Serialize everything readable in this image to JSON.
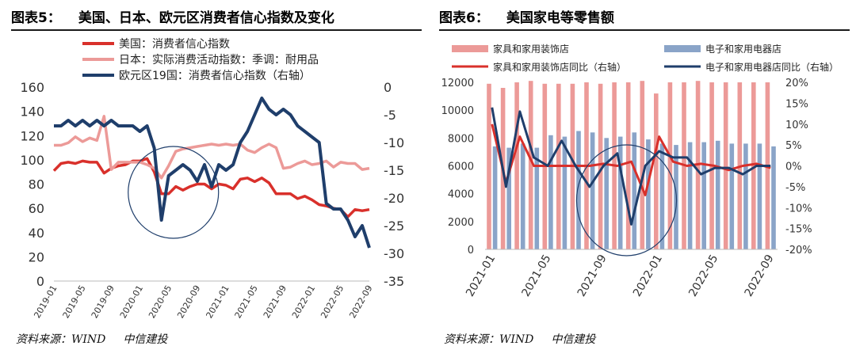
{
  "chart_data": [
    {
      "type": "line",
      "figure_label": "图表5：",
      "title": "美国、日本、欧元区消费者信心指数及变化",
      "source_label": "资料来源：WIND",
      "source_org": "中信建投",
      "x": [
        "2019-01",
        "2019-02",
        "2019-03",
        "2019-04",
        "2019-05",
        "2019-06",
        "2019-07",
        "2019-08",
        "2019-09",
        "2019-10",
        "2019-11",
        "2019-12",
        "2020-01",
        "2020-02",
        "2020-03",
        "2020-04",
        "2020-05",
        "2020-06",
        "2020-07",
        "2020-08",
        "2020-09",
        "2020-10",
        "2020-11",
        "2020-12",
        "2021-01",
        "2021-02",
        "2021-03",
        "2021-04",
        "2021-05",
        "2021-06",
        "2021-07",
        "2021-08",
        "2021-09",
        "2021-10",
        "2021-11",
        "2021-12",
        "2022-01",
        "2022-02",
        "2022-03",
        "2022-04",
        "2022-05",
        "2022-06",
        "2022-07",
        "2022-08",
        "2022-09"
      ],
      "x_tick_labels": [
        "2019-01",
        "2019-05",
        "2019-09",
        "2020-01",
        "2020-05",
        "2020-09",
        "2021-01",
        "2021-05",
        "2021-09",
        "2022-01",
        "2022-05",
        "2022-09"
      ],
      "y_left": {
        "min": 0,
        "max": 160,
        "ticks": [
          "0",
          "20",
          "40",
          "60",
          "80",
          "100",
          "120",
          "140",
          "160"
        ]
      },
      "y_right": {
        "min": -35,
        "max": 0,
        "ticks": [
          "0",
          "-5",
          "-10",
          "-15",
          "-20",
          "-25",
          "-30",
          "-35"
        ]
      },
      "series": [
        {
          "name": "美国：消费者信心指数",
          "axis": "left",
          "color": "#d9302b",
          "values": [
            91,
            97,
            98,
            97,
            99,
            98,
            98,
            89,
            93,
            95,
            96,
            99,
            99,
            101,
            90,
            72,
            72,
            78,
            75,
            78,
            80,
            80,
            76,
            80,
            79,
            76,
            84,
            85,
            82,
            85,
            81,
            72,
            72,
            72,
            68,
            70,
            67,
            63,
            62,
            60,
            59,
            53,
            59,
            58,
            59
          ]
        },
        {
          "name": "日本：实际消费活动指数：季调：耐用品",
          "axis": "left",
          "color": "#ec9a98",
          "values": [
            112,
            112,
            114,
            119,
            115,
            118,
            116,
            136,
            92,
            98,
            98,
            98,
            98,
            96,
            93,
            85,
            95,
            107,
            109,
            110,
            111,
            112,
            113,
            112,
            113,
            112,
            113,
            108,
            106,
            110,
            113,
            110,
            93,
            94,
            97,
            99,
            96,
            97,
            99,
            94,
            98,
            97,
            97,
            92,
            93
          ]
        },
        {
          "name": "欧元区19国：消费者信心指数（右轴）",
          "axis": "right",
          "color": "#1f3e6b",
          "values": [
            -7,
            -7,
            -6,
            -7,
            -6,
            -7,
            -6,
            -7,
            -6,
            -7,
            -7,
            -7,
            -8,
            -7,
            -11,
            -24,
            -16,
            -15,
            -14,
            -15,
            -17,
            -14,
            -18,
            -14,
            -15,
            -14,
            -10,
            -8,
            -5,
            -2,
            -4,
            -5,
            -4,
            -5,
            -7,
            -8,
            -9,
            -10,
            -21,
            -22,
            -22,
            -24,
            -27,
            -25,
            -29
          ]
        }
      ],
      "annotation": "circle around 2020-05"
    },
    {
      "type": "bar+line",
      "figure_label": "图表6：",
      "title": "美国家电等零售额",
      "source_label": "资料来源：WIND",
      "source_org": "中信建投",
      "x": [
        "2021-01",
        "2021-02",
        "2021-03",
        "2021-04",
        "2021-05",
        "2021-06",
        "2021-07",
        "2021-08",
        "2021-09",
        "2021-10",
        "2021-11",
        "2021-12",
        "2022-01",
        "2022-02",
        "2022-03",
        "2022-04",
        "2022-05",
        "2022-06",
        "2022-07",
        "2022-08",
        "2022-09"
      ],
      "x_tick_labels": [
        "2021-01",
        "2021-05",
        "2021-09",
        "2022-01",
        "2022-05",
        "2022-09"
      ],
      "y_left": {
        "min": 0,
        "max": 12000,
        "ticks": [
          "0",
          "2000",
          "4000",
          "6000",
          "8000",
          "10000",
          "12000"
        ]
      },
      "y_right": {
        "min": -20,
        "max": 20,
        "ticks": [
          "20%",
          "15%",
          "10%",
          "5%",
          "0%",
          "-5%",
          "-10%",
          "-15%",
          "-20%"
        ]
      },
      "series": [
        {
          "name": "家具和家用装饰店",
          "kind": "bar",
          "axis": "left",
          "color": "#ec9a98",
          "values": [
            11900,
            11600,
            12000,
            12100,
            11900,
            11900,
            11900,
            12000,
            11900,
            12000,
            12000,
            12100,
            11200,
            12000,
            12000,
            12100,
            12000,
            12000,
            12000,
            12000,
            12000
          ]
        },
        {
          "name": "电子和家用电器店",
          "kind": "bar",
          "axis": "left",
          "color": "#8aa4c8",
          "values": [
            7400,
            7300,
            7600,
            7300,
            8200,
            8100,
            8500,
            8400,
            8000,
            8100,
            8400,
            7900,
            7600,
            7500,
            7700,
            7700,
            7800,
            7600,
            7600,
            7600,
            7400
          ]
        },
        {
          "name": "家具和家用装饰店同比（右轴）",
          "kind": "line",
          "axis": "right",
          "color": "#d9302b",
          "values": [
            10,
            -4,
            7,
            0,
            0,
            0,
            0,
            0,
            0.5,
            0,
            1,
            -7,
            7,
            1,
            0,
            0.5,
            0,
            -1,
            0,
            0.5,
            -0.5
          ]
        },
        {
          "name": "电子和家用电器店同比（右轴）",
          "kind": "line",
          "axis": "right",
          "color": "#1f3e6b",
          "values": [
            14,
            -5,
            13,
            2,
            0,
            6,
            0,
            -5,
            0,
            3,
            -14,
            0,
            3.5,
            2,
            2,
            -2,
            -0.5,
            -0.5,
            -2,
            0,
            0
          ]
        }
      ],
      "annotation": "circle around 2021-11"
    }
  ]
}
